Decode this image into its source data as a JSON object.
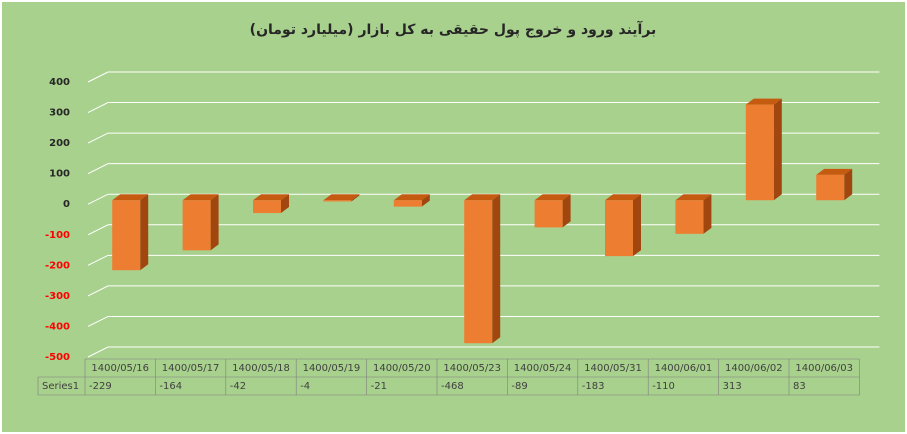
{
  "chart_data": {
    "type": "bar3d",
    "title": "برآیند ورود و خروج پول حقیقی به کل بازار (میلیارد تومان)",
    "categories": [
      "1400/05/16",
      "1400/05/17",
      "1400/05/18",
      "1400/05/19",
      "1400/05/20",
      "1400/05/23",
      "1400/05/24",
      "1400/05/31",
      "1400/06/01",
      "1400/06/02",
      "1400/06/03"
    ],
    "series": [
      {
        "name": "Series1",
        "color": "#ed7d31",
        "values": [
          -229,
          -164,
          -42,
          -4,
          -21,
          -468,
          -89,
          -183,
          -110,
          313,
          83
        ]
      }
    ],
    "ylim": [
      -500,
      400
    ],
    "yticks": [
      400,
      300,
      200,
      100,
      0,
      -100,
      -200,
      -300,
      -400,
      -500
    ],
    "negative_tick_color": "#ff0000",
    "grid": true,
    "data_table": true
  }
}
